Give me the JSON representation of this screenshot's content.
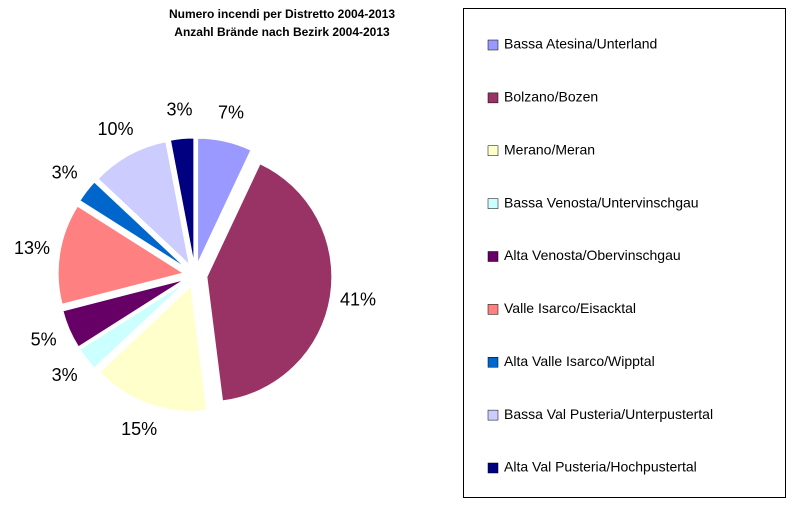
{
  "chart_data": {
    "type": "pie",
    "title": [
      "Numero incendi per Distretto 2004-2013",
      "Anzahl Brände nach Bezirk 2004-2013"
    ],
    "categories": [
      "Bassa Atesina/Unterland",
      "Bolzano/Bozen",
      "Merano/Meran",
      "Bassa Venosta/Untervinschgau",
      "Alta Venosta/Obervinschgau",
      "Valle Isarco/Eisacktal",
      "Alta Valle Isarco/Wipptal",
      "Bassa Val Pusteria/Unterpustertal",
      "Alta Val Pusteria/Hochpustertal"
    ],
    "values": [
      7,
      41,
      15,
      3,
      5,
      13,
      3,
      10,
      3
    ],
    "value_labels": [
      "7%",
      "41%",
      "15%",
      "3%",
      "5%",
      "13%",
      "3%",
      "10%",
      "3%"
    ],
    "colors": [
      "#9999ff",
      "#993366",
      "#ffffcc",
      "#ccffff",
      "#660066",
      "#ff8080",
      "#0066cc",
      "#ccccff",
      "#000080"
    ],
    "legend": "right"
  }
}
